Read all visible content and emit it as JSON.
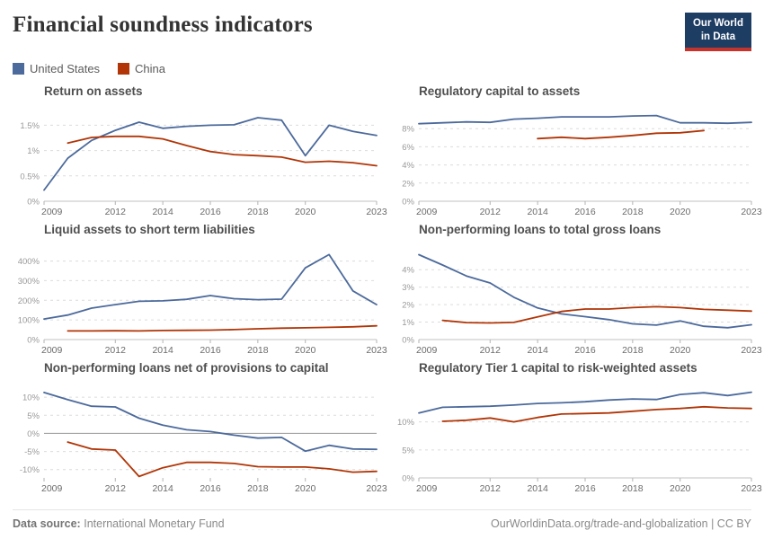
{
  "header": {
    "title": "Financial soundness indicators",
    "logo_line1": "Our World",
    "logo_line2": "in Data",
    "logo_bg": "#1d3d63",
    "logo_bar": "#c5342c"
  },
  "legend": [
    {
      "label": "United States",
      "color": "#4C6A9C"
    },
    {
      "label": "China",
      "color": "#B13507"
    }
  ],
  "footer": {
    "source_label": "Data source:",
    "source_name": "International Monetary Fund",
    "right_text": "OurWorldinData.org/trade-and-globalization | CC BY"
  },
  "style": {
    "grid_color": "#dcdcdc",
    "baseline_color": "#c2c2c2",
    "zero_line_color": "#949494",
    "y_label_color": "#999999",
    "x_label_color": "#6b6b6b",
    "tick_color": "#b3b3b3"
  },
  "chart_data": [
    {
      "type": "line",
      "title": "Return on assets",
      "x_range": [
        2009,
        2023
      ],
      "x_ticks": [
        2009,
        2012,
        2014,
        2016,
        2018,
        2020,
        2023
      ],
      "ylim": [
        0,
        1.88
      ],
      "y_ticks": [
        {
          "value": 0,
          "label": "0%"
        },
        {
          "value": 0.5,
          "label": "0.5%"
        },
        {
          "value": 1,
          "label": "1%"
        },
        {
          "value": 1.5,
          "label": "1.5%"
        }
      ],
      "series": [
        {
          "name": "United States",
          "color": "#4C6A9C",
          "start_year": 2009,
          "values": [
            0.22,
            0.85,
            1.2,
            1.4,
            1.56,
            1.44,
            1.48,
            1.5,
            1.51,
            1.65,
            1.6,
            0.9,
            1.5,
            1.38,
            1.3
          ]
        },
        {
          "name": "China",
          "color": "#B13507",
          "start_year": 2010,
          "values": [
            1.15,
            1.26,
            1.28,
            1.28,
            1.23,
            1.1,
            0.98,
            0.92,
            0.9,
            0.87,
            0.77,
            0.79,
            0.76,
            0.7
          ]
        }
      ]
    },
    {
      "type": "line",
      "title": "Regulatory capital to assets",
      "x_range": [
        2009,
        2023
      ],
      "x_ticks": [
        2009,
        2012,
        2014,
        2016,
        2018,
        2020,
        2023
      ],
      "ylim": [
        0,
        10.5
      ],
      "y_ticks": [
        {
          "value": 0,
          "label": "0%"
        },
        {
          "value": 2,
          "label": "2%"
        },
        {
          "value": 4,
          "label": "4%"
        },
        {
          "value": 6,
          "label": "6%"
        },
        {
          "value": 8,
          "label": "8%"
        }
      ],
      "series": [
        {
          "name": "United States",
          "color": "#4C6A9C",
          "start_year": 2009,
          "values": [
            8.55,
            8.65,
            8.75,
            8.7,
            9.05,
            9.15,
            9.3,
            9.3,
            9.3,
            9.4,
            9.45,
            8.65,
            8.65,
            8.6,
            8.7
          ]
        },
        {
          "name": "China",
          "color": "#B13507",
          "start_year": 2014,
          "values": [
            6.9,
            7.05,
            6.9,
            7.05,
            7.25,
            7.5,
            7.55,
            7.8
          ]
        }
      ]
    },
    {
      "type": "line",
      "title": "Liquid assets to short term liabilities",
      "x_range": [
        2009,
        2023
      ],
      "x_ticks": [
        2009,
        2012,
        2014,
        2016,
        2018,
        2020,
        2023
      ],
      "ylim": [
        0,
        485
      ],
      "y_ticks": [
        {
          "value": 0,
          "label": "0%"
        },
        {
          "value": 100,
          "label": "100%"
        },
        {
          "value": 200,
          "label": "200%"
        },
        {
          "value": 300,
          "label": "300%"
        },
        {
          "value": 400,
          "label": "400%"
        }
      ],
      "series": [
        {
          "name": "United States",
          "color": "#4C6A9C",
          "start_year": 2009,
          "values": [
            105,
            125,
            160,
            178,
            195,
            197,
            205,
            224,
            208,
            203,
            206,
            365,
            433,
            248,
            178
          ]
        },
        {
          "name": "China",
          "color": "#B13507",
          "start_year": 2010,
          "values": [
            44,
            44,
            45,
            44,
            46,
            47,
            48,
            51,
            55,
            58,
            60,
            62,
            65,
            70
          ]
        }
      ]
    },
    {
      "type": "line",
      "title": "Non-performing loans to total gross loans",
      "x_range": [
        2009,
        2023
      ],
      "x_ticks": [
        2009,
        2012,
        2014,
        2016,
        2018,
        2020,
        2023
      ],
      "ylim": [
        0,
        5.45
      ],
      "y_ticks": [
        {
          "value": 0,
          "label": "0%"
        },
        {
          "value": 1,
          "label": "1%"
        },
        {
          "value": 2,
          "label": "2%"
        },
        {
          "value": 3,
          "label": "3%"
        },
        {
          "value": 4,
          "label": "4%"
        }
      ],
      "series": [
        {
          "name": "United States",
          "color": "#4C6A9C",
          "start_year": 2009,
          "values": [
            4.86,
            4.27,
            3.64,
            3.24,
            2.42,
            1.81,
            1.47,
            1.31,
            1.14,
            0.9,
            0.83,
            1.07,
            0.76,
            0.68,
            0.85
          ]
        },
        {
          "name": "China",
          "color": "#B13507",
          "start_year": 2010,
          "values": [
            1.1,
            0.97,
            0.95,
            0.98,
            1.3,
            1.61,
            1.75,
            1.75,
            1.83,
            1.88,
            1.83,
            1.73,
            1.68,
            1.63
          ]
        }
      ]
    },
    {
      "type": "line",
      "title": "Non-performing loans net of provisions to capital",
      "x_range": [
        2009,
        2023
      ],
      "x_ticks": [
        2009,
        2012,
        2014,
        2016,
        2018,
        2020,
        2023
      ],
      "ylim": [
        -12.3,
        14.0
      ],
      "y_ticks": [
        {
          "value": -10,
          "label": "-10%"
        },
        {
          "value": -5,
          "label": "-5%"
        },
        {
          "value": 0,
          "label": "0%"
        },
        {
          "value": 5,
          "label": "5%"
        },
        {
          "value": 10,
          "label": "10%"
        }
      ],
      "series": [
        {
          "name": "United States",
          "color": "#4C6A9C",
          "start_year": 2009,
          "values": [
            11.3,
            9.3,
            7.5,
            7.3,
            4.2,
            2.3,
            1.0,
            0.5,
            -0.5,
            -1.3,
            -1.1,
            -4.9,
            -3.3,
            -4.3,
            -4.4
          ]
        },
        {
          "name": "China",
          "color": "#B13507",
          "start_year": 2010,
          "values": [
            -2.4,
            -4.3,
            -4.6,
            -11.9,
            -9.5,
            -8.0,
            -8.0,
            -8.3,
            -9.2,
            -9.3,
            -9.3,
            -9.8,
            -10.7,
            -10.5
          ]
        }
      ]
    },
    {
      "type": "line",
      "title": "Regulatory Tier 1 capital to risk-weighted assets",
      "x_range": [
        2009,
        2023
      ],
      "x_ticks": [
        2009,
        2012,
        2014,
        2016,
        2018,
        2020,
        2023
      ],
      "ylim": [
        0,
        17
      ],
      "y_ticks": [
        {
          "value": 0,
          "label": "0%"
        },
        {
          "value": 5,
          "label": "5%"
        },
        {
          "value": 10,
          "label": "10%"
        }
      ],
      "series": [
        {
          "name": "United States",
          "color": "#4C6A9C",
          "start_year": 2009,
          "values": [
            11.6,
            12.6,
            12.7,
            12.8,
            13.0,
            13.3,
            13.4,
            13.6,
            13.9,
            14.1,
            14.0,
            14.9,
            15.2,
            14.7,
            15.3
          ]
        },
        {
          "name": "China",
          "color": "#B13507",
          "start_year": 2010,
          "values": [
            10.1,
            10.3,
            10.7,
            10.0,
            10.8,
            11.4,
            11.5,
            11.6,
            11.9,
            12.2,
            12.4,
            12.7,
            12.5,
            12.4
          ]
        }
      ]
    }
  ]
}
